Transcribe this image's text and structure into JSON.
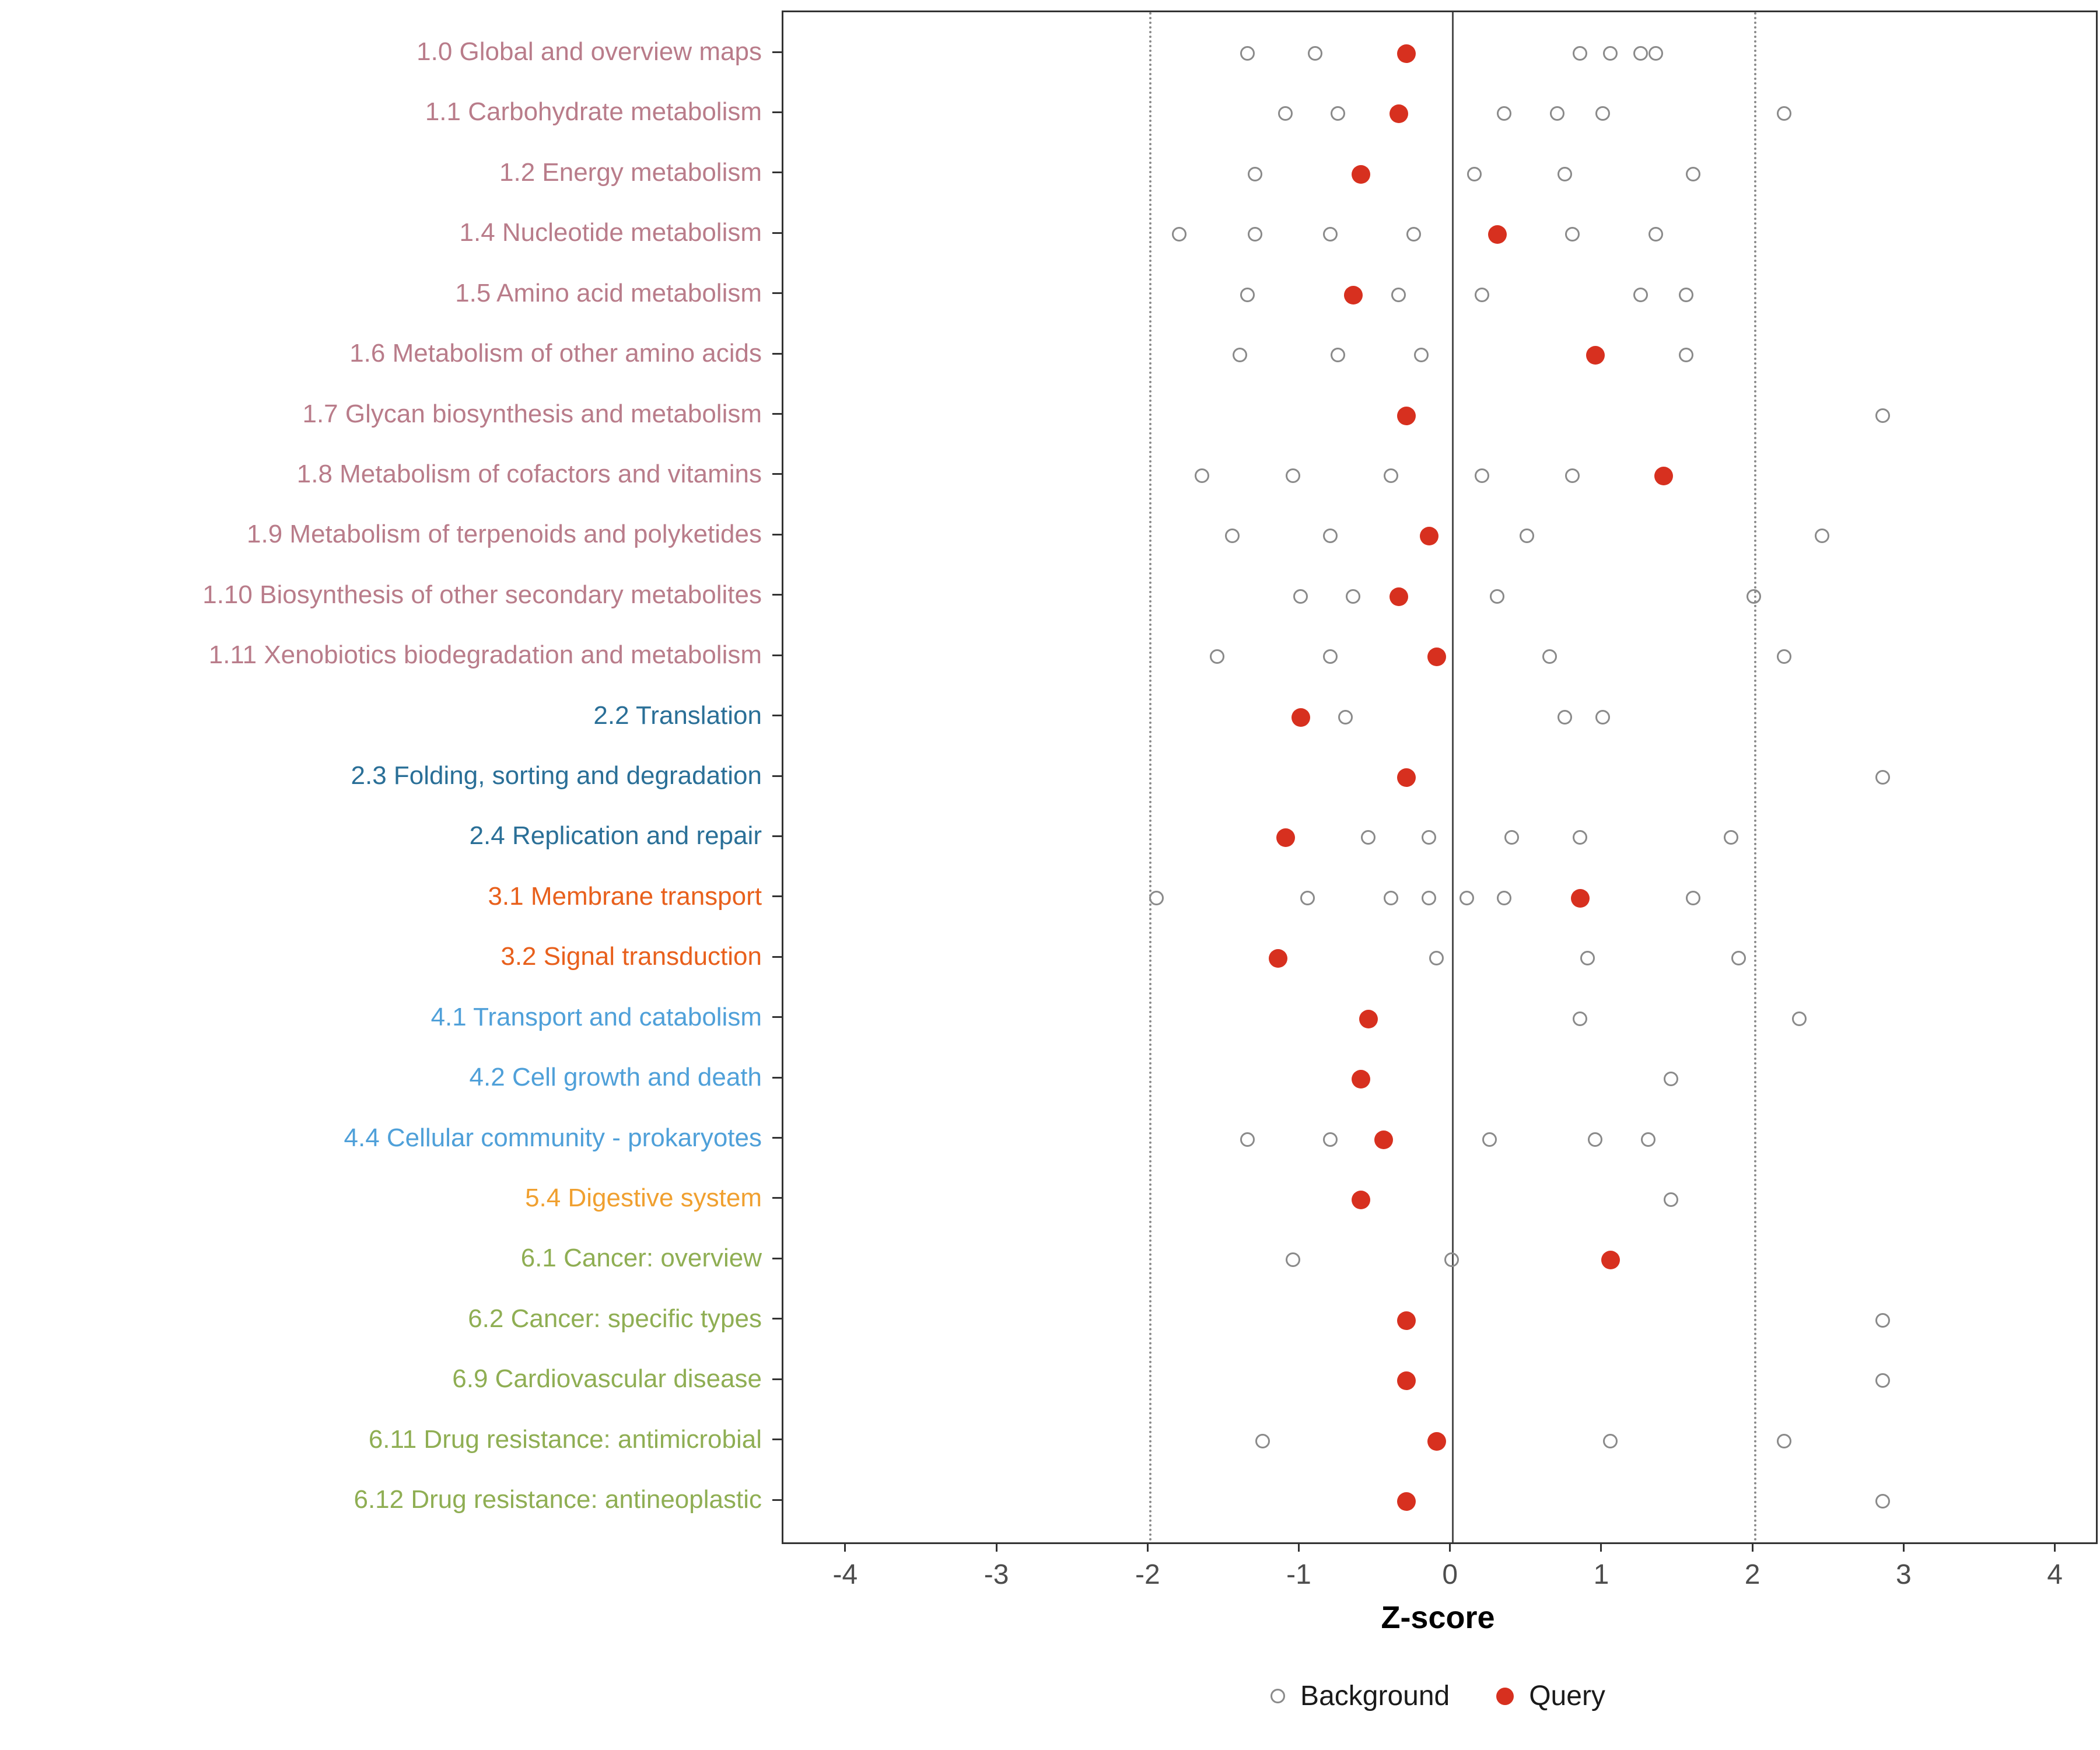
{
  "chart_data": {
    "type": "scatter",
    "title": "",
    "xlabel": "Z-score",
    "xlim": [
      -4.42,
      4.26
    ],
    "xticks": [
      -4,
      -3,
      -2,
      -1,
      0,
      1,
      2,
      3,
      4
    ],
    "vlines": [
      {
        "x": -2,
        "style": "dotted"
      },
      {
        "x": 0,
        "style": "solid"
      },
      {
        "x": 2,
        "style": "dotted"
      }
    ],
    "legend": [
      {
        "label": "Background",
        "marker": "open-circle"
      },
      {
        "label": "Query",
        "marker": "filled-circle"
      }
    ],
    "legend_position": "bottom",
    "grid": false,
    "colors": {
      "query": "#D7301F",
      "background_stroke": "#8a8a8a"
    },
    "group_colors": {
      "metabolism": "#B97C8A",
      "genetic_information_processing": "#2A6F97",
      "environmental_information_processing": "#E8601C",
      "cellular_processes": "#4FA0D9",
      "organismal_systems": "#F0A030",
      "human_diseases": "#8FAE53"
    },
    "rows": [
      {
        "label": "1.0 Global and overview maps",
        "group": "metabolism",
        "query": -0.3,
        "background": [
          -1.35,
          -0.9,
          0.85,
          1.05,
          1.25,
          1.35
        ]
      },
      {
        "label": "1.1 Carbohydrate metabolism",
        "group": "metabolism",
        "query": -0.35,
        "background": [
          -1.1,
          -0.75,
          0.35,
          0.7,
          1.0,
          2.2
        ]
      },
      {
        "label": "1.2 Energy metabolism",
        "group": "metabolism",
        "query": -0.6,
        "background": [
          -1.3,
          0.15,
          0.75,
          1.6
        ]
      },
      {
        "label": "1.4 Nucleotide metabolism",
        "group": "metabolism",
        "query": 0.3,
        "background": [
          -1.8,
          -1.3,
          -0.8,
          -0.25,
          0.8,
          1.35
        ]
      },
      {
        "label": "1.5 Amino acid metabolism",
        "group": "metabolism",
        "query": -0.65,
        "background": [
          -1.35,
          -0.35,
          0.2,
          1.25,
          1.55
        ]
      },
      {
        "label": "1.6 Metabolism of other amino acids",
        "group": "metabolism",
        "query": 0.95,
        "background": [
          -1.4,
          -0.75,
          -0.2,
          1.55
        ]
      },
      {
        "label": "1.7 Glycan biosynthesis and metabolism",
        "group": "metabolism",
        "query": -0.3,
        "background": [
          2.85
        ]
      },
      {
        "label": "1.8 Metabolism of cofactors and vitamins",
        "group": "metabolism",
        "query": 1.4,
        "background": [
          -1.65,
          -1.05,
          -0.4,
          0.2,
          0.8
        ]
      },
      {
        "label": "1.9 Metabolism of terpenoids and polyketides",
        "group": "metabolism",
        "query": -0.15,
        "background": [
          -1.45,
          -0.8,
          0.5,
          2.45
        ]
      },
      {
        "label": "1.10 Biosynthesis of other secondary metabolites",
        "group": "metabolism",
        "query": -0.35,
        "background": [
          -1.0,
          -0.65,
          0.3,
          2.0
        ]
      },
      {
        "label": "1.11 Xenobiotics biodegradation and metabolism",
        "group": "metabolism",
        "query": -0.1,
        "background": [
          -1.55,
          -0.8,
          0.65,
          2.2
        ]
      },
      {
        "label": "2.2 Translation",
        "group": "genetic_information_processing",
        "query": -1.0,
        "background": [
          -0.7,
          0.75,
          1.0
        ]
      },
      {
        "label": "2.3 Folding, sorting and degradation",
        "group": "genetic_information_processing",
        "query": -0.3,
        "background": [
          2.85
        ]
      },
      {
        "label": "2.4 Replication and repair",
        "group": "genetic_information_processing",
        "query": -1.1,
        "background": [
          -0.55,
          -0.15,
          0.4,
          0.85,
          1.85
        ]
      },
      {
        "label": "3.1 Membrane transport",
        "group": "environmental_information_processing",
        "query": 0.85,
        "background": [
          -1.95,
          -0.95,
          -0.4,
          -0.15,
          0.1,
          0.35,
          1.6
        ]
      },
      {
        "label": "3.2 Signal transduction",
        "group": "environmental_information_processing",
        "query": -1.15,
        "background": [
          -0.1,
          0.9,
          1.9
        ]
      },
      {
        "label": "4.1 Transport and catabolism",
        "group": "cellular_processes",
        "query": -0.55,
        "background": [
          0.85,
          2.3
        ]
      },
      {
        "label": "4.2 Cell growth and death",
        "group": "cellular_processes",
        "query": -0.6,
        "background": [
          1.45
        ]
      },
      {
        "label": "4.4 Cellular community - prokaryotes",
        "group": "cellular_processes",
        "query": -0.45,
        "background": [
          -1.35,
          -0.8,
          0.25,
          0.95,
          1.3
        ]
      },
      {
        "label": "5.4 Digestive system",
        "group": "organismal_systems",
        "query": -0.6,
        "background": [
          1.45
        ]
      },
      {
        "label": "6.1 Cancer: overview",
        "group": "human_diseases",
        "query": 1.05,
        "background": [
          -1.05,
          0.0
        ]
      },
      {
        "label": "6.2 Cancer: specific types",
        "group": "human_diseases",
        "query": -0.3,
        "background": [
          2.85
        ]
      },
      {
        "label": "6.9 Cardiovascular disease",
        "group": "human_diseases",
        "query": -0.3,
        "background": [
          2.85
        ]
      },
      {
        "label": "6.11 Drug resistance: antimicrobial",
        "group": "human_diseases",
        "query": -0.1,
        "background": [
          -1.25,
          1.05,
          2.2
        ]
      },
      {
        "label": "6.12 Drug resistance: antineoplastic",
        "group": "human_diseases",
        "query": -0.3,
        "background": [
          2.85
        ]
      }
    ]
  }
}
